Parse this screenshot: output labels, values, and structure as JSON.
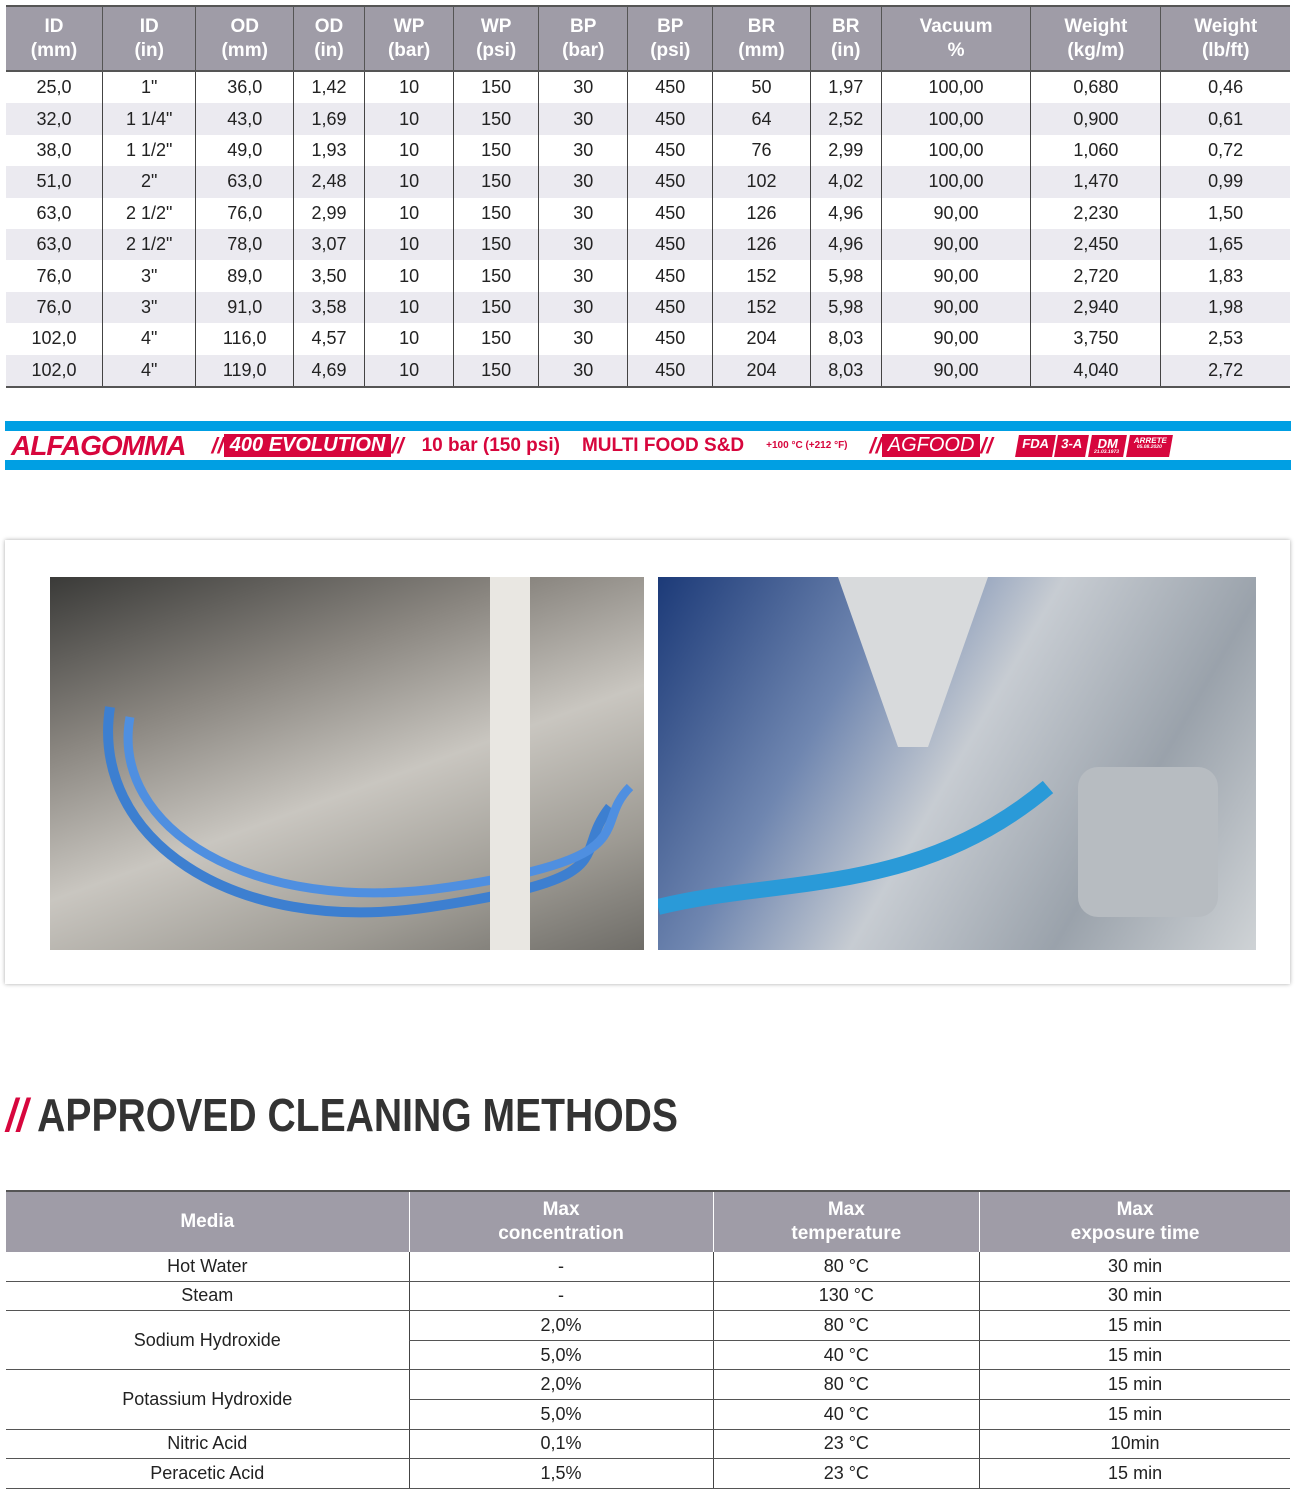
{
  "spec_table": {
    "headers": [
      [
        "ID",
        "(mm)"
      ],
      [
        "ID",
        "(in)"
      ],
      [
        "OD",
        "(mm)"
      ],
      [
        "OD",
        "(in)"
      ],
      [
        "WP",
        "(bar)"
      ],
      [
        "WP",
        "(psi)"
      ],
      [
        "BP",
        "(bar)"
      ],
      [
        "BP",
        "(psi)"
      ],
      [
        "BR",
        "(mm)"
      ],
      [
        "BR",
        "(in)"
      ],
      [
        "Vacuum",
        "%"
      ],
      [
        "Weight",
        "(kg/m)"
      ],
      [
        "Weight",
        "(lb/ft)"
      ]
    ],
    "rows": [
      [
        "25,0",
        "1\"",
        "36,0",
        "1,42",
        "10",
        "150",
        "30",
        "450",
        "50",
        "1,97",
        "100,00",
        "0,680",
        "0,46"
      ],
      [
        "32,0",
        "1 1/4\"",
        "43,0",
        "1,69",
        "10",
        "150",
        "30",
        "450",
        "64",
        "2,52",
        "100,00",
        "0,900",
        "0,61"
      ],
      [
        "38,0",
        "1 1/2\"",
        "49,0",
        "1,93",
        "10",
        "150",
        "30",
        "450",
        "76",
        "2,99",
        "100,00",
        "1,060",
        "0,72"
      ],
      [
        "51,0",
        "2\"",
        "63,0",
        "2,48",
        "10",
        "150",
        "30",
        "450",
        "102",
        "4,02",
        "100,00",
        "1,470",
        "0,99"
      ],
      [
        "63,0",
        "2 1/2\"",
        "76,0",
        "2,99",
        "10",
        "150",
        "30",
        "450",
        "126",
        "4,96",
        "90,00",
        "2,230",
        "1,50"
      ],
      [
        "63,0",
        "2 1/2\"",
        "78,0",
        "3,07",
        "10",
        "150",
        "30",
        "450",
        "126",
        "4,96",
        "90,00",
        "2,450",
        "1,65"
      ],
      [
        "76,0",
        "3\"",
        "89,0",
        "3,50",
        "10",
        "150",
        "30",
        "450",
        "152",
        "5,98",
        "90,00",
        "2,720",
        "1,83"
      ],
      [
        "76,0",
        "3\"",
        "91,0",
        "3,58",
        "10",
        "150",
        "30",
        "450",
        "152",
        "5,98",
        "90,00",
        "2,940",
        "1,98"
      ],
      [
        "102,0",
        "4\"",
        "116,0",
        "4,57",
        "10",
        "150",
        "30",
        "450",
        "204",
        "8,03",
        "90,00",
        "3,750",
        "2,53"
      ],
      [
        "102,0",
        "4\"",
        "119,0",
        "4,69",
        "10",
        "150",
        "30",
        "450",
        "204",
        "8,03",
        "90,00",
        "4,040",
        "2,72"
      ]
    ]
  },
  "banner": {
    "brand": "ALFAGOMMA",
    "product": "400 EVOLUTION",
    "pressure": "10 bar (150 psi)",
    "line": "MULTI FOOD S&D",
    "temperature": "+100 °C (+212 °F)",
    "agfood": "AGFOOD",
    "certs": [
      "FDA",
      "3-A",
      "DM",
      "ARRETE"
    ],
    "dm_date": "21.03.1973",
    "arrete_date": "05.08.2020",
    "accent": "#d7063d",
    "stripe": "#009fe3"
  },
  "section_title": {
    "prefix": "//",
    "text": "APPROVED CLEANING METHODS"
  },
  "cleaning_table": {
    "headers": [
      [
        "Media"
      ],
      [
        "Max",
        "concentration"
      ],
      [
        "Max",
        "temperature"
      ],
      [
        "Max",
        "exposure time"
      ]
    ],
    "rows": [
      {
        "media": "Hot Water",
        "items": [
          [
            "-",
            "80 °C",
            "30 min"
          ]
        ]
      },
      {
        "media": "Steam",
        "items": [
          [
            "-",
            "130 °C",
            "30 min"
          ]
        ]
      },
      {
        "media": "Sodium Hydroxide",
        "items": [
          [
            "2,0%",
            "80 °C",
            "15 min"
          ],
          [
            "5,0%",
            "40 °C",
            "15 min"
          ]
        ]
      },
      {
        "media": "Potassium Hydroxide",
        "items": [
          [
            "2,0%",
            "80 °C",
            "15 min"
          ],
          [
            "5,0%",
            "40 °C",
            "15 min"
          ]
        ]
      },
      {
        "media": "Nitric Acid",
        "items": [
          [
            "0,1%",
            "23 °C",
            "10min"
          ]
        ]
      },
      {
        "media": "Peracetic Acid",
        "items": [
          [
            "1,5%",
            "23 °C",
            "15 min"
          ]
        ]
      }
    ]
  }
}
